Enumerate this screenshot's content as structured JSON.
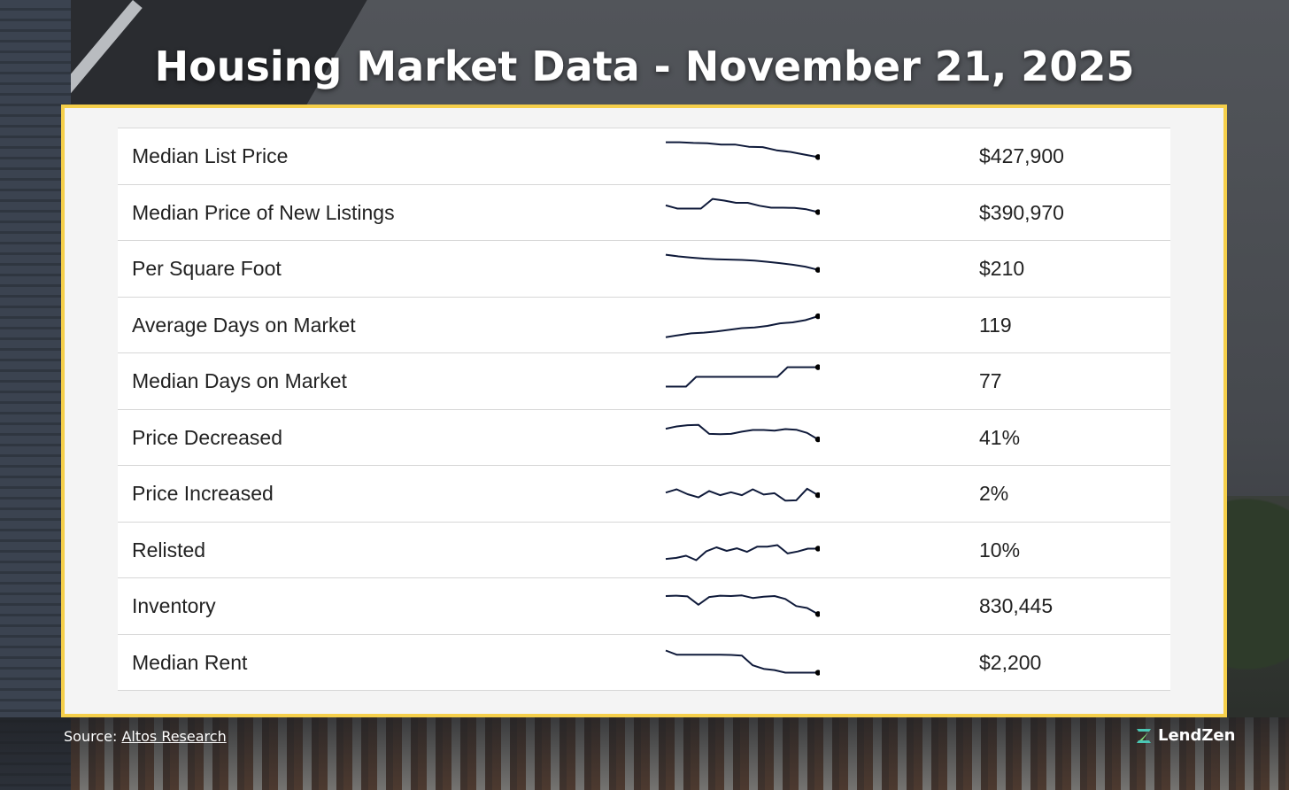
{
  "header": {
    "title": "Housing Market Data - November 21, 2025"
  },
  "footer": {
    "source_prefix": "Source: ",
    "source_link": "Altos Research",
    "brand": "LendZen"
  },
  "colors": {
    "card_border": "#f5cf4a",
    "sparkline": "#0f1a3a",
    "title": "#ffffff"
  },
  "chart_data": {
    "type": "table",
    "columns": [
      "metric",
      "trend",
      "value"
    ],
    "rows": [
      {
        "label": "Median List Price",
        "value": "$427,900",
        "trend": [
          10,
          10,
          9.8,
          9.7,
          9.3,
          9.3,
          8.6,
          8.5,
          7.5,
          7,
          6.2,
          5.4
        ]
      },
      {
        "label": "Median Price of New Listings",
        "value": "$390,970",
        "trend": [
          8,
          7,
          7,
          7,
          10,
          9.5,
          8.8,
          8.8,
          7.9,
          7.3,
          7.3,
          7.2,
          6.8,
          5.9
        ]
      },
      {
        "label": "Per Square Foot",
        "value": "$210",
        "trend": [
          10,
          9.5,
          9.1,
          8.8,
          8.6,
          8.5,
          8.4,
          8.2,
          7.8,
          7.4,
          6.9,
          6.3,
          5.3
        ]
      },
      {
        "label": "Average Days on Market",
        "value": "119",
        "trend": [
          2,
          2.6,
          3.2,
          3.4,
          3.8,
          4.3,
          4.8,
          5,
          5.5,
          6.3,
          6.6,
          7.3,
          8.5
        ]
      },
      {
        "label": "Median Days on Market",
        "value": "77",
        "trend": [
          4,
          4,
          4,
          7,
          7,
          7,
          7,
          7,
          7,
          7,
          7,
          7,
          10,
          10,
          10,
          10
        ]
      },
      {
        "label": "Price Decreased",
        "value": "41%",
        "trend": [
          8.5,
          9.2,
          9.6,
          9.7,
          6.9,
          6.8,
          6.9,
          7.6,
          8.1,
          8.1,
          7.9,
          8.4,
          8.2,
          7.2,
          5.2
        ]
      },
      {
        "label": "Price Increased",
        "value": "2%",
        "trend": [
          6,
          7,
          5.5,
          4.5,
          6.5,
          5.2,
          6.1,
          5.2,
          7,
          5.4,
          5.8,
          3.5,
          3.6,
          7.2,
          5.2
        ]
      },
      {
        "label": "Relisted",
        "value": "10%",
        "trend": [
          3,
          3.3,
          4,
          2.6,
          5.4,
          6.6,
          5.5,
          6.3,
          5.2,
          6.8,
          6.8,
          7.3,
          4.7,
          5.3,
          6.2,
          6.2
        ]
      },
      {
        "label": "Inventory",
        "value": "830,445",
        "trend": [
          8.8,
          8.9,
          8.7,
          6.1,
          8.5,
          8.9,
          8.8,
          9,
          8.2,
          8.6,
          8.8,
          7.9,
          5.7,
          5.1,
          3.2
        ]
      },
      {
        "label": "Median Rent",
        "value": "$2,200",
        "trend": [
          9.5,
          8.2,
          8.2,
          8.2,
          8.2,
          8.2,
          8.1,
          7.9,
          4.9,
          3.8,
          3.4,
          2.6,
          2.6,
          2.6,
          2.6
        ]
      }
    ]
  }
}
